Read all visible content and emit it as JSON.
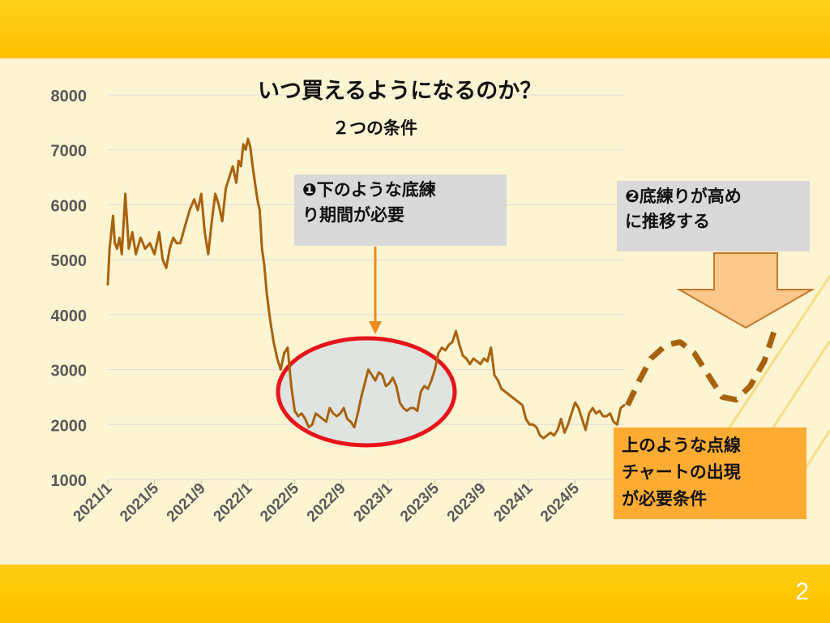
{
  "slide": {
    "page_number": "2"
  },
  "title": "いつ買えるようになるのか？",
  "subtitle": "２つの条件",
  "callouts": {
    "condition1": {
      "lines": [
        "❶下のような底練",
        "り期間が必要"
      ]
    },
    "condition2": {
      "lines": [
        "❷底練りが高め",
        "に推移する"
      ]
    },
    "note": {
      "lines": [
        "上のような点線",
        "チャートの出現",
        "が必要条件"
      ]
    }
  },
  "colors": {
    "background": "#fdf4d2",
    "band": "#ffc000",
    "price_line": "#a8620f",
    "ellipse_stroke": "#e8141b",
    "ellipse_fill": "#dfe4e0",
    "arrow": "#f28a1c",
    "down_arrow_fill": "#fcc98a",
    "callout_gray": "#d9d9d9",
    "callout_orange": "#ffac33"
  },
  "chart_data": {
    "type": "line",
    "y_ticks": [
      "1000",
      "2000",
      "3000",
      "4000",
      "5000",
      "6000",
      "7000",
      "8000"
    ],
    "ylim": [
      1000,
      8000
    ],
    "x_ticks": [
      "2021/1",
      "2021/5",
      "2021/9",
      "2022/1",
      "2022/5",
      "2022/9",
      "2023/1",
      "2023/5",
      "2023/9",
      "2024/1",
      "2024/5"
    ],
    "xlim": [
      0,
      44.2
    ],
    "grid": true,
    "series": [
      {
        "style": "solid",
        "x": [
          0,
          0.15,
          0.3,
          0.45,
          0.6,
          0.8,
          1.0,
          1.2,
          1.5,
          1.8,
          2.1,
          2.4,
          2.8,
          3.2,
          3.6,
          4.0,
          4.4,
          4.7,
          5.0,
          5.3,
          5.6,
          5.9,
          6.2,
          6.6,
          7.0,
          7.4,
          7.7,
          8.0,
          8.3,
          8.6,
          8.9,
          9.2,
          9.5,
          9.8,
          10.1,
          10.4,
          10.7,
          11.0,
          11.2,
          11.4,
          11.6,
          11.8,
          12.0,
          12.2,
          12.4,
          12.6,
          12.8,
          13.0,
          13.2,
          13.4,
          13.6,
          13.9,
          14.2,
          14.5,
          14.8,
          15.1,
          15.4,
          15.7,
          16.0,
          16.3,
          16.6,
          16.9,
          17.2,
          17.5,
          17.8,
          18.1,
          18.4,
          18.7,
          19.0,
          19.3,
          19.6,
          19.9,
          20.2,
          20.5,
          20.8,
          21.1,
          21.4,
          21.7,
          22.0,
          22.3,
          22.6,
          22.9,
          23.2,
          23.5,
          23.8,
          24.1,
          24.4,
          24.7,
          25.0,
          25.3,
          25.6,
          25.9,
          26.2,
          26.5,
          26.8,
          27.1,
          27.4,
          27.7,
          28.0,
          28.3,
          28.6,
          28.9,
          29.2,
          29.5,
          29.8,
          30.1,
          30.4,
          30.7,
          31.0,
          31.3,
          31.6,
          31.9,
          32.2,
          32.5,
          32.8,
          33.1,
          33.4,
          33.7,
          34.0,
          34.3,
          34.6,
          34.9,
          35.2,
          35.5,
          35.8,
          36.1,
          36.4,
          36.7,
          37.0,
          37.3,
          37.6,
          37.9,
          38.2,
          38.5,
          38.8,
          39.1,
          39.4,
          39.7,
          40.0,
          40.3,
          40.6,
          40.9,
          41.2,
          41.5,
          41.8,
          42.1,
          42.4,
          42.7,
          43.0,
          43.3,
          43.6,
          43.9,
          44.2
        ],
        "y": [
          4550,
          5200,
          5500,
          5800,
          5300,
          5200,
          5400,
          5100,
          6200,
          5200,
          5500,
          5100,
          5400,
          5200,
          5300,
          5100,
          5500,
          5000,
          4850,
          5200,
          5400,
          5300,
          5300,
          5600,
          5900,
          6100,
          5900,
          6200,
          5500,
          5100,
          5700,
          6200,
          6000,
          5700,
          6300,
          6500,
          6700,
          6400,
          6800,
          6700,
          7100,
          7000,
          7200,
          7050,
          6700,
          6400,
          6100,
          5900,
          5200,
          4900,
          4400,
          3900,
          3500,
          3200,
          3000,
          3300,
          3400,
          2700,
          2250,
          2150,
          2200,
          2100,
          1950,
          2000,
          2200,
          2150,
          2100,
          2050,
          2300,
          2200,
          2150,
          2200,
          2300,
          2100,
          2050,
          1950,
          2200,
          2500,
          2750,
          3000,
          2900,
          2800,
          2950,
          2900,
          2700,
          2750,
          2850,
          2700,
          2400,
          2300,
          2250,
          2300,
          2300,
          2250,
          2600,
          2700,
          2650,
          2800,
          3000,
          3300,
          3400,
          3350,
          3450,
          3500,
          3700,
          3450,
          3250,
          3200,
          3100,
          3200,
          3150,
          3100,
          3200,
          3150,
          3400,
          2900,
          2800,
          2650,
          2600,
          2550,
          2500,
          2450,
          2400,
          2350,
          2100,
          2000,
          2000,
          1950,
          1800,
          1750,
          1800,
          1850,
          1800,
          1900,
          2100,
          1850,
          2000,
          2200,
          2400,
          2300,
          2100,
          1900,
          2200,
          2300,
          2200,
          2250,
          2150,
          2150,
          2200,
          2050,
          2000,
          2300,
          2350
        ]
      },
      {
        "style": "dashed",
        "x": [
          44.5,
          45.5,
          46.5,
          47.8,
          49.0,
          50.2,
          51.4,
          52.6,
          53.8,
          55.0,
          56.2,
          57.2
        ],
        "y": [
          2350,
          2800,
          3200,
          3450,
          3500,
          3300,
          2900,
          2500,
          2450,
          2700,
          3150,
          3800
        ]
      }
    ]
  }
}
